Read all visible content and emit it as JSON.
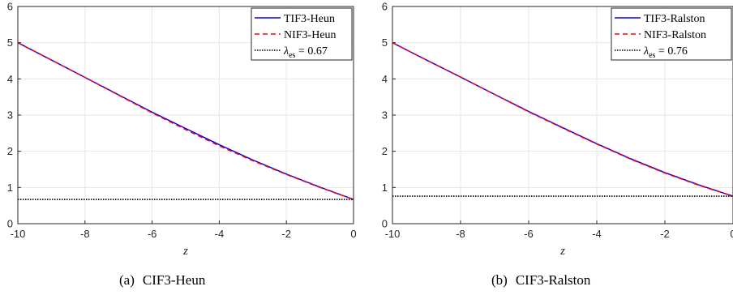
{
  "chart_data": [
    {
      "type": "line",
      "caption_tag": "(a)",
      "caption": "CIF3-Heun",
      "xlabel": "z",
      "ylabel": "",
      "xlim": [
        -10,
        0
      ],
      "ylim": [
        0,
        6
      ],
      "xticks": [
        -10,
        -8,
        -6,
        -4,
        -2,
        0
      ],
      "xtick_labels": [
        "-10",
        "-8",
        "-6",
        "-4",
        "-2",
        "0"
      ],
      "yticks": [
        0,
        1,
        2,
        3,
        4,
        5,
        6
      ],
      "ytick_labels": [
        "0",
        "1",
        "2",
        "3",
        "4",
        "5",
        "6"
      ],
      "grid": true,
      "legend_position": "top-right",
      "series": [
        {
          "name": "TIF3-Heun",
          "color": "#0000ff",
          "style": "solid",
          "x": [
            -10,
            -9,
            -8,
            -7,
            -6,
            -5,
            -4,
            -3,
            -2,
            -1,
            0
          ],
          "y": [
            5.0,
            4.52,
            4.04,
            3.56,
            3.08,
            2.63,
            2.18,
            1.76,
            1.37,
            1.01,
            0.67
          ]
        },
        {
          "name": "NIF3-Heun",
          "color": "#ff0000",
          "style": "dashed",
          "x": [
            -10,
            -9,
            -8,
            -7,
            -6,
            -5,
            -4,
            -3,
            -2,
            -1,
            0
          ],
          "y": [
            5.0,
            4.52,
            4.04,
            3.55,
            3.06,
            2.6,
            2.15,
            1.74,
            1.36,
            1.0,
            0.67
          ]
        },
        {
          "name_prefix": "λ",
          "name_sub": "es",
          "name_suffix": " = 0.67",
          "color": "#000000",
          "style": "dotted",
          "x": [
            -10,
            0
          ],
          "y": [
            0.67,
            0.67
          ]
        }
      ]
    },
    {
      "type": "line",
      "caption_tag": "(b)",
      "caption": "CIF3-Ralston",
      "xlabel": "z",
      "ylabel": "",
      "xlim": [
        -10,
        0
      ],
      "ylim": [
        0,
        6
      ],
      "xticks": [
        -10,
        -8,
        -6,
        -4,
        -2,
        0
      ],
      "xtick_labels": [
        "-10",
        "-8",
        "-6",
        "-4",
        "-2",
        "0"
      ],
      "yticks": [
        0,
        1,
        2,
        3,
        4,
        5,
        6
      ],
      "ytick_labels": [
        "0",
        "1",
        "2",
        "3",
        "4",
        "5",
        "6"
      ],
      "grid": true,
      "legend_position": "top-right",
      "series": [
        {
          "name": "TIF3-Ralston",
          "color": "#0000ff",
          "style": "solid",
          "x": [
            -10,
            -9,
            -8,
            -7,
            -6,
            -5,
            -4,
            -3,
            -2,
            -1,
            0
          ],
          "y": [
            5.0,
            4.52,
            4.05,
            3.57,
            3.1,
            2.65,
            2.21,
            1.79,
            1.41,
            1.07,
            0.76
          ]
        },
        {
          "name": "NIF3-Ralston",
          "color": "#ff0000",
          "style": "dashed",
          "x": [
            -10,
            -9,
            -8,
            -7,
            -6,
            -5,
            -4,
            -3,
            -2,
            -1,
            0
          ],
          "y": [
            5.0,
            4.52,
            4.05,
            3.57,
            3.09,
            2.64,
            2.2,
            1.78,
            1.4,
            1.06,
            0.76
          ]
        },
        {
          "name_prefix": "λ",
          "name_sub": "es",
          "name_suffix": " = 0.76",
          "color": "#000000",
          "style": "dotted",
          "x": [
            -10,
            0
          ],
          "y": [
            0.76,
            0.76
          ]
        }
      ]
    }
  ]
}
